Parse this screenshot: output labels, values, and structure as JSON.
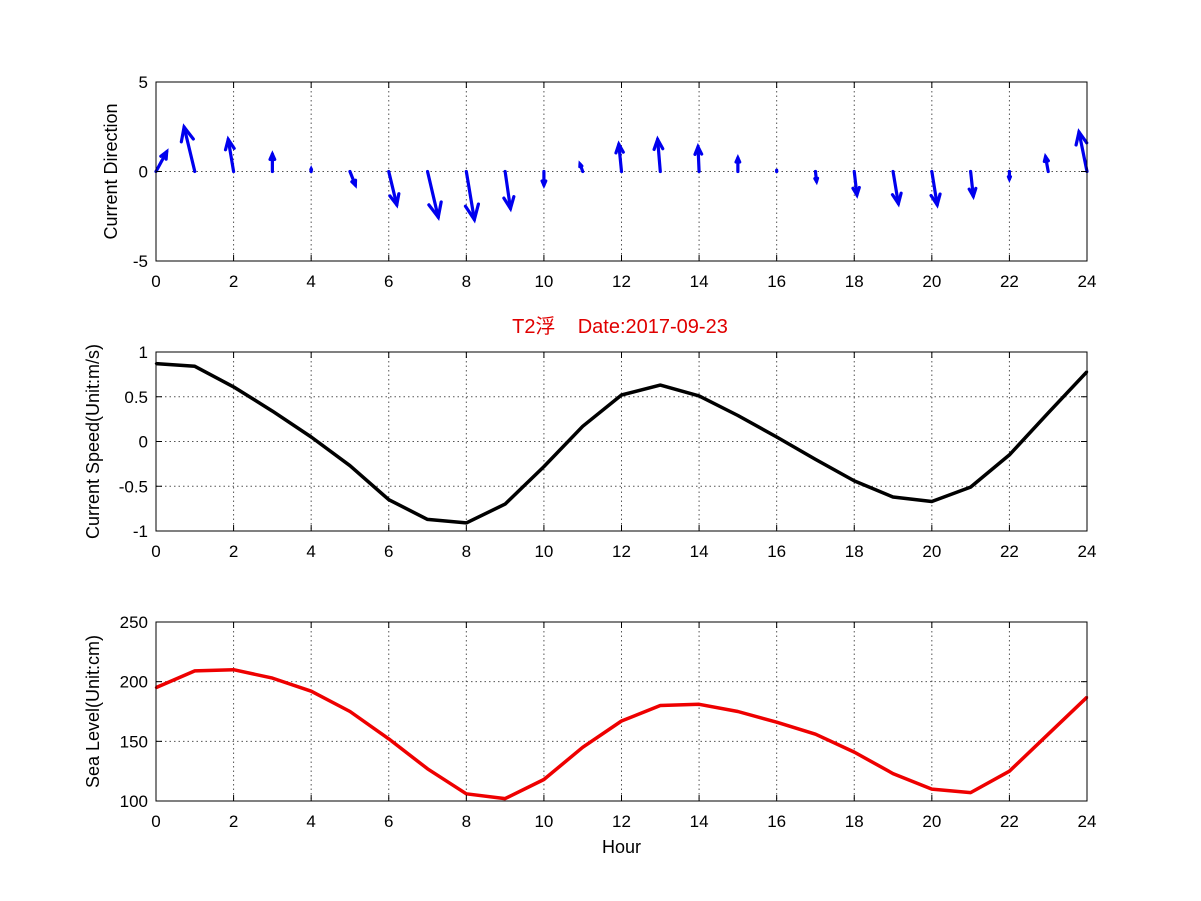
{
  "title": {
    "text": "T2浮    Date:2017-09-23",
    "color": "#e00000"
  },
  "chart_data": [
    {
      "type": "quiver",
      "ylabel": "Current Direction",
      "xlim": [
        0,
        24
      ],
      "ylim": [
        -5,
        5
      ],
      "xticks": [
        "0",
        "2",
        "4",
        "6",
        "8",
        "10",
        "12",
        "14",
        "16",
        "18",
        "20",
        "22",
        "24"
      ],
      "yticks": [
        "5",
        "0",
        "-5"
      ],
      "color": "#0000ee",
      "grid": true,
      "vectors": [
        {
          "x": 0,
          "u": 0.2,
          "v": 0.8
        },
        {
          "x": 1,
          "u": -0.2,
          "v": 1.8
        },
        {
          "x": 2,
          "u": -0.1,
          "v": 1.3
        },
        {
          "x": 3,
          "u": 0.0,
          "v": 0.7
        },
        {
          "x": 4,
          "u": 0.0,
          "v": 0.1
        },
        {
          "x": 5,
          "u": 0.1,
          "v": -0.55
        },
        {
          "x": 6,
          "u": 0.15,
          "v": -1.35
        },
        {
          "x": 7,
          "u": 0.2,
          "v": -1.85
        },
        {
          "x": 8,
          "u": 0.15,
          "v": -1.95
        },
        {
          "x": 9,
          "u": 0.1,
          "v": -1.5
        },
        {
          "x": 10,
          "u": 0.0,
          "v": -0.55
        },
        {
          "x": 11,
          "u": -0.05,
          "v": 0.3
        },
        {
          "x": 12,
          "u": -0.05,
          "v": 1.1
        },
        {
          "x": 13,
          "u": -0.05,
          "v": 1.3
        },
        {
          "x": 14,
          "u": -0.02,
          "v": 1.0
        },
        {
          "x": 15,
          "u": 0.0,
          "v": 0.55
        },
        {
          "x": 16,
          "u": 0.0,
          "v": 0.05
        },
        {
          "x": 17,
          "u": 0.02,
          "v": -0.4
        },
        {
          "x": 18,
          "u": 0.05,
          "v": -0.95
        },
        {
          "x": 19,
          "u": 0.1,
          "v": -1.3
        },
        {
          "x": 20,
          "u": 0.1,
          "v": -1.35
        },
        {
          "x": 21,
          "u": 0.05,
          "v": -1.0
        },
        {
          "x": 22,
          "u": 0.0,
          "v": -0.3
        },
        {
          "x": 23,
          "u": -0.05,
          "v": 0.6
        },
        {
          "x": 24,
          "u": -0.15,
          "v": 1.6
        }
      ]
    },
    {
      "type": "line",
      "ylabel": "Current Speed(Unit:m/s)",
      "xlim": [
        0,
        24
      ],
      "ylim": [
        -1,
        1
      ],
      "xticks": [
        "0",
        "2",
        "4",
        "6",
        "8",
        "10",
        "12",
        "14",
        "16",
        "18",
        "20",
        "22",
        "24"
      ],
      "yticks": [
        "1",
        "0.5",
        "0",
        "-0.5",
        "-1"
      ],
      "color": "#000000",
      "grid": true,
      "x": [
        0,
        1,
        2,
        3,
        4,
        5,
        6,
        7,
        8,
        9,
        10,
        11,
        12,
        13,
        14,
        15,
        16,
        17,
        18,
        19,
        20,
        21,
        22,
        23,
        24
      ],
      "values": [
        0.87,
        0.84,
        0.61,
        0.34,
        0.05,
        -0.27,
        -0.65,
        -0.87,
        -0.91,
        -0.7,
        -0.28,
        0.17,
        0.52,
        0.63,
        0.51,
        0.29,
        0.05,
        -0.2,
        -0.44,
        -0.62,
        -0.67,
        -0.51,
        -0.15,
        0.32,
        0.78
      ]
    },
    {
      "type": "line",
      "ylabel": "Sea Level(Unit:cm)",
      "xlabel": "Hour",
      "xlim": [
        0,
        24
      ],
      "ylim": [
        100,
        250
      ],
      "xticks": [
        "0",
        "2",
        "4",
        "6",
        "8",
        "10",
        "12",
        "14",
        "16",
        "18",
        "20",
        "22",
        "24"
      ],
      "yticks": [
        "250",
        "200",
        "150",
        "100"
      ],
      "color": "#ee0000",
      "grid": true,
      "x": [
        0,
        1,
        2,
        3,
        4,
        5,
        6,
        7,
        8,
        9,
        10,
        11,
        12,
        13,
        14,
        15,
        16,
        17,
        18,
        19,
        20,
        21,
        22,
        23,
        24
      ],
      "values": [
        195,
        209,
        210,
        203,
        192,
        175,
        152,
        127,
        106,
        102,
        118,
        145,
        167,
        180,
        181,
        175,
        166,
        156,
        141,
        123,
        110,
        107,
        125,
        156,
        187
      ]
    }
  ]
}
